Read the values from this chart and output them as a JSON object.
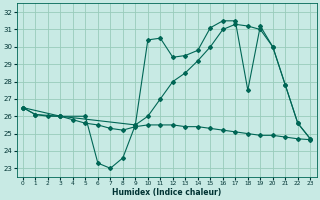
{
  "xlabel": "Humidex (Indice chaleur)",
  "bg_color": "#c8eae4",
  "grid_color": "#99ccbb",
  "line_color": "#006655",
  "ylim": [
    22.5,
    32.5
  ],
  "xlim": [
    -0.5,
    23.5
  ],
  "yticks": [
    23,
    24,
    25,
    26,
    27,
    28,
    29,
    30,
    31,
    32
  ],
  "xticks": [
    0,
    1,
    2,
    3,
    4,
    5,
    6,
    7,
    8,
    9,
    10,
    11,
    12,
    13,
    14,
    15,
    16,
    17,
    18,
    19,
    20,
    21,
    22,
    23
  ],
  "series": [
    {
      "x": [
        0,
        1,
        2,
        3,
        4,
        5,
        6,
        7,
        8,
        9,
        10,
        11,
        12,
        13,
        14,
        15,
        16,
        17,
        18,
        19,
        20,
        21,
        22,
        23
      ],
      "y": [
        26.5,
        26.1,
        26.0,
        26.0,
        25.8,
        25.6,
        25.5,
        25.3,
        25.2,
        25.4,
        25.5,
        25.5,
        25.5,
        25.4,
        25.4,
        25.3,
        25.2,
        25.1,
        25.0,
        24.9,
        24.9,
        24.8,
        24.7,
        24.65
      ]
    },
    {
      "x": [
        0,
        3,
        9,
        10,
        11,
        12,
        13,
        14,
        15,
        16,
        17,
        18,
        19,
        20,
        21,
        22,
        23
      ],
      "y": [
        26.5,
        26.0,
        25.5,
        26.0,
        27.0,
        28.0,
        28.5,
        29.2,
        30.0,
        31.0,
        31.3,
        31.2,
        31.0,
        30.0,
        27.8,
        25.6,
        24.7
      ]
    },
    {
      "x": [
        0,
        1,
        3,
        5,
        6,
        7,
        8,
        9,
        10,
        11,
        12,
        13,
        14,
        15,
        16,
        17,
        18,
        19,
        20,
        21,
        22,
        23
      ],
      "y": [
        26.5,
        26.1,
        26.0,
        26.0,
        23.3,
        23.0,
        23.6,
        25.5,
        30.4,
        30.5,
        29.4,
        29.5,
        29.8,
        31.1,
        31.5,
        31.5,
        27.5,
        31.2,
        30.0,
        27.8,
        25.6,
        24.7
      ]
    }
  ]
}
